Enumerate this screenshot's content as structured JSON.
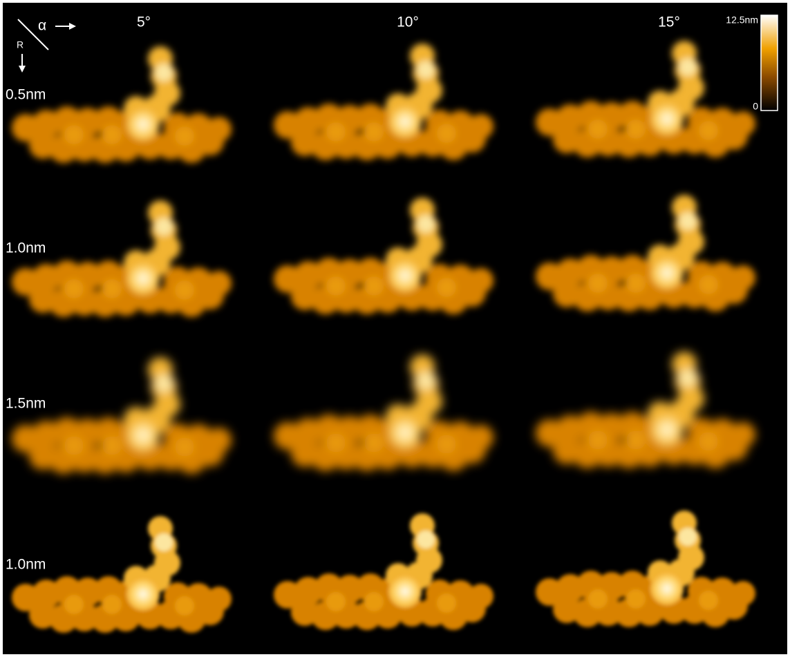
{
  "header": {
    "alpha": "α",
    "r": "R"
  },
  "columns": [
    "5°",
    "10°",
    "15°"
  ],
  "rows": [
    "0.5nm",
    "1.0nm",
    "1.5nm",
    "1.0nm"
  ],
  "colorbar": {
    "max": "12.5nm",
    "min": "0"
  }
}
